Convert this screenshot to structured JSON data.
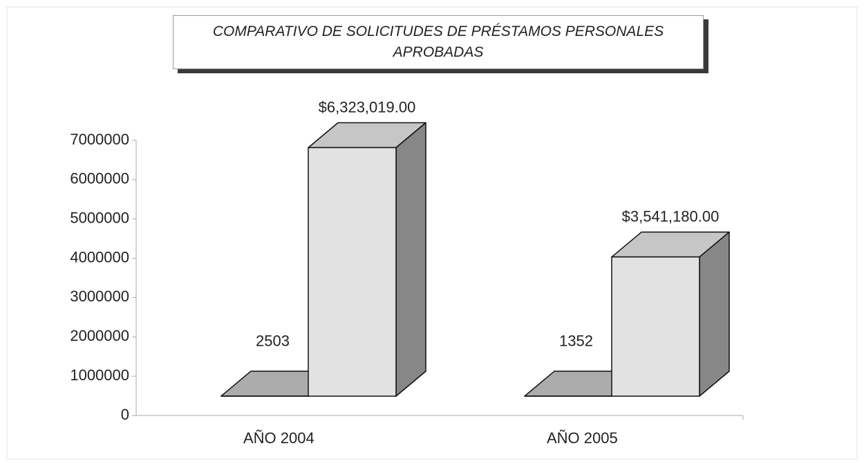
{
  "chart_data": {
    "type": "bar3d",
    "title": "COMPARATIVO DE SOLICITUDES DE PRÉSTAMOS PERSONALES APROBADAS",
    "categories": [
      "AÑO 2004",
      "AÑO 2005"
    ],
    "series": [
      {
        "color": "#c4c4c4",
        "values": [
          2503,
          1352
        ]
      },
      {
        "color": "#e2e2e2",
        "values": [
          6323019,
          3541180
        ],
        "value_labels": [
          "$6,323,019.00",
          "$3,541,180.00"
        ]
      }
    ],
    "ylim": [
      0,
      7000000
    ],
    "yticks": [
      0,
      1000000,
      2000000,
      3000000,
      4000000,
      5000000,
      6000000,
      7000000
    ]
  }
}
